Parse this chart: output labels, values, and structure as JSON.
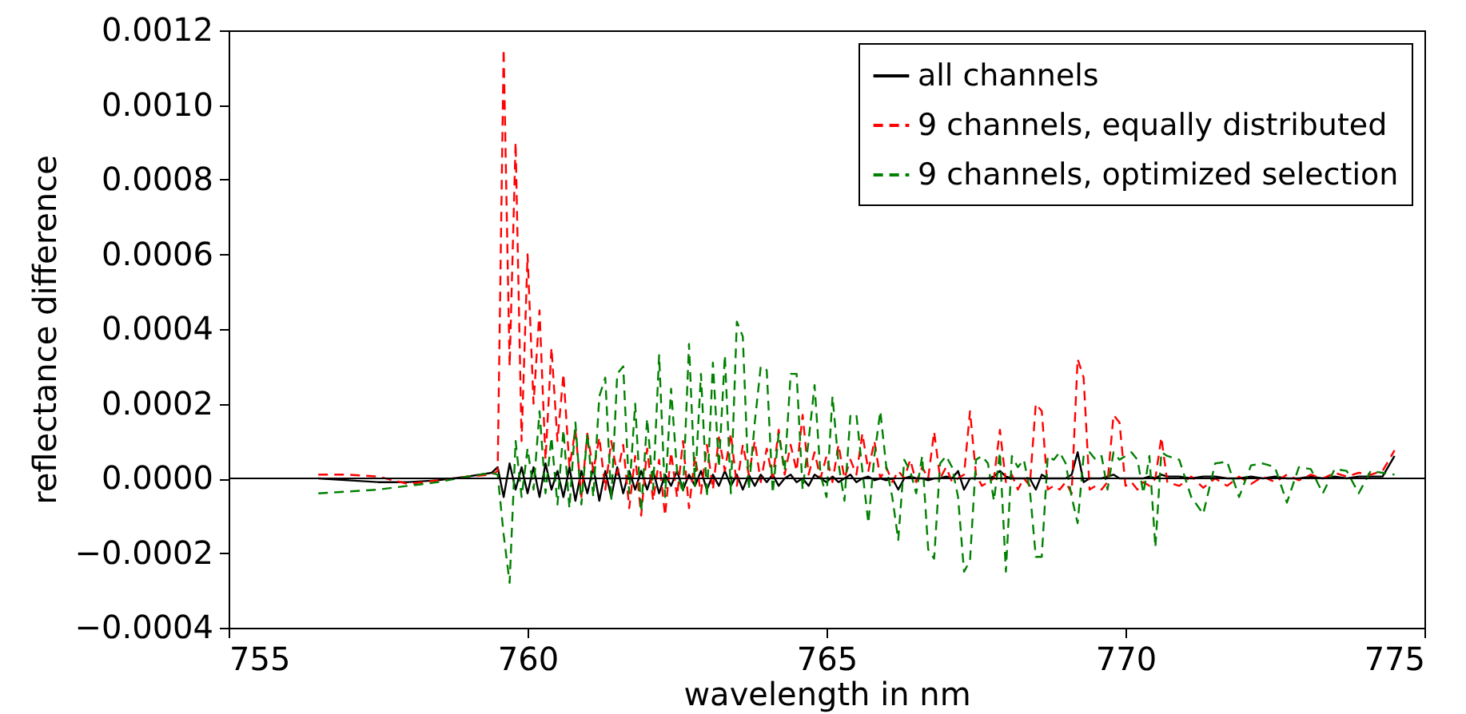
{
  "chart_data": {
    "type": "line",
    "xlabel": "wavelength in nm",
    "ylabel": "reflectance difference",
    "xlim": [
      755,
      775
    ],
    "xticks": [
      755,
      760,
      765,
      770,
      775
    ],
    "ylim": [
      -0.0004,
      0.0012
    ],
    "yticks": [
      {
        "value": -0.0004,
        "label": "−0.0004"
      },
      {
        "value": -0.0002,
        "label": "−0.0002"
      },
      {
        "value": 0,
        "label": "0.0000"
      },
      {
        "value": 0.0002,
        "label": "0.0002"
      },
      {
        "value": 0.0004,
        "label": "0.0004"
      },
      {
        "value": 0.0006,
        "label": "0.0006"
      },
      {
        "value": 0.0008,
        "label": "0.0008"
      },
      {
        "value": 0.001,
        "label": "0.0010"
      },
      {
        "value": 0.0012,
        "label": "0.0012"
      }
    ],
    "legend": "top right",
    "grid": false,
    "marker": "none",
    "ref_lines": [
      {
        "axis": "y",
        "value": 0,
        "color": "#000000"
      }
    ],
    "x": [
      756.5,
      757,
      757.5,
      758,
      758.5,
      759,
      759.4,
      759.5,
      759.6,
      759.7,
      759.8,
      759.9,
      760,
      760.1,
      760.2,
      760.3,
      760.4,
      760.5,
      760.6,
      760.7,
      760.8,
      760.9,
      761,
      761.1,
      761.2,
      761.3,
      761.4,
      761.5,
      761.6,
      761.7,
      761.8,
      761.9,
      762,
      762.1,
      762.2,
      762.3,
      762.4,
      762.5,
      762.6,
      762.7,
      762.8,
      762.9,
      763,
      763.1,
      763.2,
      763.3,
      763.4,
      763.5,
      763.6,
      763.7,
      763.8,
      763.9,
      764,
      764.1,
      764.2,
      764.3,
      764.4,
      764.5,
      764.6,
      764.7,
      764.8,
      764.9,
      765,
      765.1,
      765.2,
      765.3,
      765.4,
      765.5,
      765.6,
      765.7,
      765.8,
      765.9,
      766,
      766.1,
      766.2,
      766.3,
      766.4,
      766.5,
      766.6,
      766.7,
      766.8,
      766.9,
      767,
      767.1,
      767.2,
      767.3,
      767.4,
      767.5,
      767.6,
      767.7,
      767.8,
      767.9,
      768,
      768.1,
      768.2,
      768.3,
      768.4,
      768.5,
      768.6,
      768.7,
      768.8,
      768.9,
      769,
      769.1,
      769.2,
      769.3,
      769.4,
      769.5,
      769.6,
      769.7,
      769.8,
      769.9,
      770,
      770.1,
      770.2,
      770.3,
      770.4,
      770.5,
      770.6,
      770.7,
      770.9,
      771.1,
      771.3,
      771.5,
      771.7,
      771.9,
      772.1,
      772.3,
      772.5,
      772.7,
      772.9,
      773.1,
      773.3,
      773.5,
      773.7,
      773.9,
      774.1,
      774.3,
      774.5
    ],
    "series": [
      {
        "name": "all channels",
        "color": "#000000",
        "line_style": "solid",
        "values": [
          0,
          -5e-06,
          -1e-05,
          -1e-05,
          -5e-06,
          5e-06,
          1.5e-05,
          3e-05,
          -5e-05,
          4e-05,
          -3e-05,
          3e-05,
          -4e-05,
          3e-05,
          -5e-05,
          4e-05,
          -3e-05,
          2e-05,
          -5e-05,
          3e-05,
          -6e-05,
          2e-05,
          -4e-05,
          3e-05,
          -6e-05,
          2e-05,
          -5e-05,
          3e-05,
          -4e-05,
          2e-05,
          -3e-05,
          2e-05,
          -3e-05,
          2e-05,
          -4e-05,
          1e-05,
          -2e-05,
          2e-05,
          -3e-05,
          1e-05,
          -2e-05,
          2e-05,
          -3e-05,
          1e-05,
          -2e-05,
          2e-05,
          -2e-05,
          1e-05,
          -3e-05,
          1e-05,
          -2e-05,
          1e-05,
          -1e-05,
          1e-05,
          -2e-05,
          0,
          1e-05,
          -1e-05,
          0,
          -2e-05,
          1e-05,
          0,
          -1e-05,
          5e-06,
          -1e-05,
          0,
          1e-05,
          -1e-05,
          0,
          5e-06,
          -5e-06,
          0,
          -5e-06,
          0,
          -3e-05,
          0,
          5e-06,
          0,
          0,
          -5e-06,
          0,
          0,
          5e-06,
          0,
          2e-05,
          -3e-05,
          0,
          0,
          0,
          0,
          5e-06,
          2e-05,
          5e-06,
          0,
          0,
          0,
          0,
          -3e-05,
          1e-05,
          0,
          0,
          0,
          0,
          1e-05,
          7e-05,
          -1e-05,
          0,
          0,
          0,
          5e-06,
          1e-05,
          0,
          0,
          0,
          0,
          0,
          5e-06,
          0,
          1e-05,
          5e-06,
          5e-06,
          0,
          5e-06,
          5e-06,
          0,
          0,
          5e-06,
          0,
          5e-06,
          0,
          0,
          5e-06,
          0,
          5e-06,
          0,
          5e-06,
          5e-06,
          5e-06,
          6e-05
        ]
      },
      {
        "name": "9 channels, equally distributed",
        "color": "#ff0000",
        "line_style": "dashed",
        "values": [
          1e-05,
          1e-05,
          5e-06,
          -1.5e-05,
          -5e-06,
          5e-06,
          1e-05,
          2e-05,
          0.00115,
          0.0003,
          0.0009,
          0.0001,
          0.0006,
          0.0002,
          0.00045,
          5e-05,
          0.00035,
          0.0001,
          0.00028,
          3e-05,
          0.00013,
          -5e-05,
          0.00012,
          2e-05,
          0.00011,
          -3e-05,
          0.0001,
          1e-05,
          9e-05,
          -8e-05,
          6e-05,
          -0.0001,
          8e-05,
          -6e-05,
          5e-05,
          -0.0001,
          7e-05,
          -5e-05,
          0.0001,
          -8e-05,
          6e-05,
          -4e-05,
          9e-05,
          -3e-05,
          0.00011,
          2e-05,
          0.00012,
          -2e-05,
          9e-05,
          1e-05,
          0.0001,
          -1e-05,
          8e-05,
          0,
          0.00013,
          1e-05,
          9e-05,
          2e-05,
          0.00017,
          1e-05,
          7e-05,
          0,
          6e-05,
          -1e-05,
          9e-05,
          0,
          5e-05,
          1e-05,
          0.00012,
          2e-05,
          0.0001,
          0,
          3e-05,
          -1e-05,
          2e-05,
          0,
          5e-05,
          -1e-05,
          3e-05,
          0,
          0.000125,
          0,
          3e-05,
          -1e-05,
          0,
          1e-05,
          0.00018,
          1e-05,
          -2e-05,
          -1e-05,
          0,
          0.00013,
          -1e-05,
          1e-05,
          -3e-05,
          0,
          -2e-05,
          0.0002,
          0.00018,
          -3e-05,
          -2e-05,
          -3e-05,
          -1e-05,
          -4e-05,
          0.00032,
          0.00027,
          -3e-05,
          -2e-05,
          -3e-05,
          -1e-05,
          0.00017,
          0.00015,
          -2e-05,
          -1e-05,
          -3e-05,
          -1e-05,
          -2e-05,
          0,
          0.00011,
          -1e-05,
          -2e-05,
          5e-06,
          -2.5e-05,
          0,
          -2e-05,
          5e-06,
          -1.5e-05,
          5e-06,
          -1e-05,
          1e-05,
          -5e-06,
          1e-05,
          0,
          1.5e-05,
          5e-06,
          1.5e-05,
          1e-05,
          2e-05,
          7.5e-05
        ]
      },
      {
        "name": "9 channels, optimized selection",
        "color": "#008000",
        "line_style": "dashed",
        "values": [
          -4e-05,
          -3.5e-05,
          -3e-05,
          -2e-05,
          -1e-05,
          5e-06,
          1.5e-05,
          1e-05,
          -0.00015,
          -0.00028,
          0.0001,
          -5e-05,
          8e-05,
          -3e-05,
          0.00018,
          -4e-05,
          0.00011,
          -7e-05,
          0.00013,
          -8e-05,
          0.00015,
          -7e-05,
          0.00012,
          -5e-05,
          0.00022,
          0.00027,
          -6e-05,
          0.00028,
          0.0003,
          -4e-05,
          0.0002,
          -9e-05,
          0.00016,
          -3e-05,
          0.00033,
          -5e-05,
          0.00024,
          2e-05,
          -4e-05,
          0.00036,
          -2e-05,
          0.00028,
          -5e-05,
          0.00031,
          3e-05,
          0.00033,
          -4e-05,
          0.00042,
          0.00038,
          -3e-05,
          0.00015,
          0.0003,
          0.00029,
          -4e-05,
          0.00012,
          2e-05,
          0.00028,
          0.00028,
          -3e-05,
          0.0001,
          0.00025,
          1e-05,
          -5e-05,
          0.00022,
          4e-05,
          -6e-05,
          0.00017,
          0.00017,
          2e-05,
          -0.00012,
          6e-05,
          0.00018,
          3e-05,
          -5e-05,
          -0.000165,
          5e-05,
          2e-05,
          -4e-05,
          6e-05,
          -0.00019,
          -0.000215,
          4e-05,
          6e-05,
          3e-05,
          -5e-05,
          -0.00025,
          -0.00022,
          5e-05,
          6e-05,
          4e-05,
          -6e-05,
          7e-05,
          -0.00025,
          6e-05,
          3e-05,
          5e-05,
          -3e-05,
          -0.00021,
          -0.00021,
          6e-05,
          5e-05,
          7e-05,
          4e-05,
          -5e-05,
          -0.00012,
          6e-05,
          7e-05,
          5e-05,
          6e-05,
          -3e-05,
          7e-05,
          5e-05,
          6e-05,
          7e-05,
          5e-05,
          -4e-05,
          6e-05,
          -0.000185,
          7e-05,
          6e-05,
          5e-05,
          -5e-05,
          -9.5e-05,
          4e-05,
          4.5e-05,
          -5e-05,
          3.5e-05,
          4e-05,
          3e-05,
          -6.5e-05,
          3e-05,
          2.5e-05,
          -4e-05,
          2.5e-05,
          2e-05,
          -4e-05,
          2e-05,
          1.5e-05,
          1e-05
        ]
      }
    ]
  }
}
